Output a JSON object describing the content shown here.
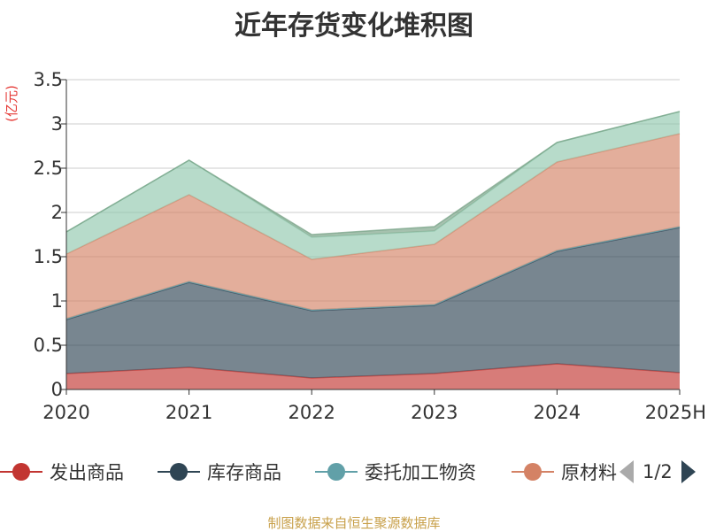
{
  "title": "近年存货变化堆积图",
  "source": "制图数据来自恒生聚源数据库",
  "legend_page": "1/2",
  "chart_data": {
    "type": "area",
    "stacked": true,
    "title": "近年存货变化堆积图",
    "ylabel": "(亿元)",
    "xlabel": "",
    "categories": [
      "2020",
      "2021",
      "2022",
      "2023",
      "2024",
      "2025H"
    ],
    "ylim": [
      0,
      3.5
    ],
    "yticks": [
      0,
      0.5,
      1,
      1.5,
      2,
      2.5,
      3,
      3.5
    ],
    "ytick_labels": [
      "0",
      "0.5",
      "1",
      "1.5",
      "2",
      "2.5",
      "3",
      "3.5"
    ],
    "grid": true,
    "legend_position": "bottom",
    "series": [
      {
        "name": "发出商品",
        "color": "#c23531",
        "values": [
          0.18,
          0.25,
          0.13,
          0.18,
          0.29,
          0.19
        ]
      },
      {
        "name": "库存商品",
        "color": "#2f4554",
        "values": [
          0.61,
          0.96,
          0.76,
          0.77,
          1.27,
          1.64
        ]
      },
      {
        "name": "委托加工物资",
        "color": "#61a0a8",
        "values": [
          0.01,
          0.01,
          0.01,
          0.01,
          0.01,
          0.01
        ]
      },
      {
        "name": "原材料",
        "color": "#d48265",
        "values": [
          0.73,
          0.98,
          0.57,
          0.68,
          1.0,
          1.05
        ]
      },
      {
        "name": "",
        "color": "#91c7ae",
        "values": [
          0.25,
          0.39,
          0.25,
          0.15,
          0.22,
          0.25
        ]
      },
      {
        "name": "",
        "color": "#749f83",
        "values": [
          0.0,
          0.0,
          0.03,
          0.05,
          0.0,
          0.0
        ]
      }
    ]
  }
}
